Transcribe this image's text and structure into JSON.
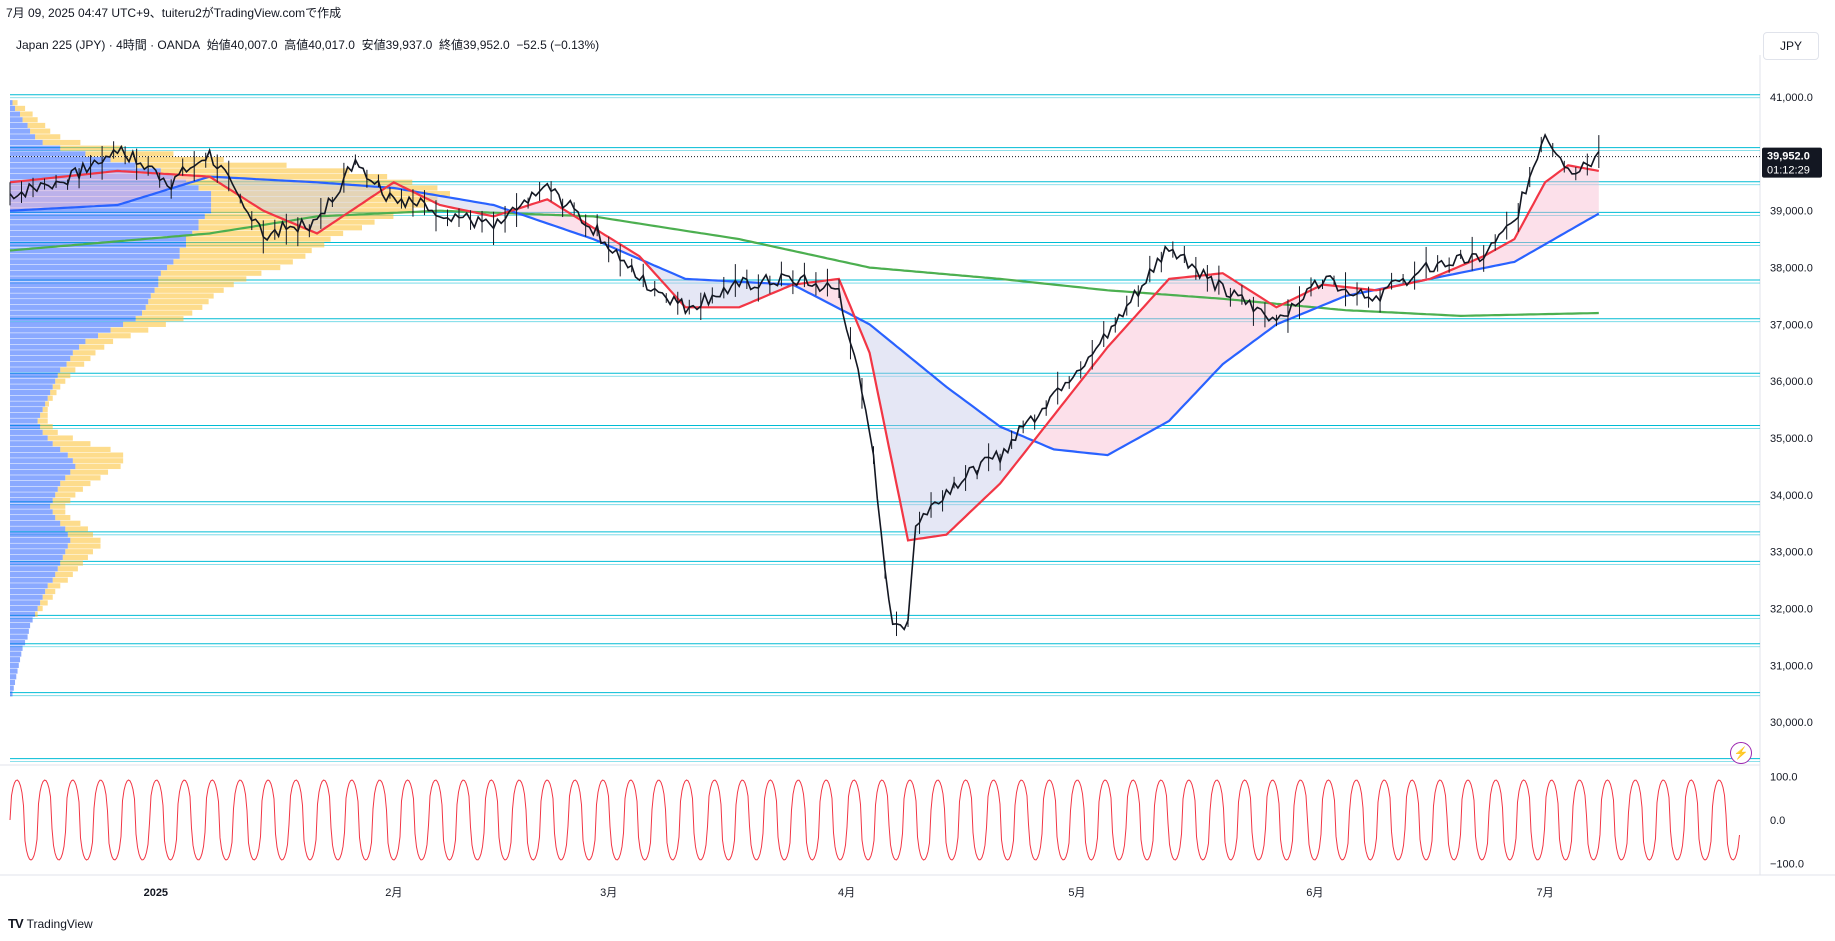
{
  "header": {
    "caption": "7月 09, 2025 04:47 UTC+9、tuiteru2がTradingView.comで作成"
  },
  "symbol": {
    "name": "Japan 225 (JPY)",
    "separator1": " · ",
    "interval": "4時間",
    "separator2": " · ",
    "broker": "OANDA",
    "open_label": "始値",
    "open": "40,007.0",
    "high_label": "高値",
    "high": "40,017.0",
    "low_label": "安値",
    "low": "39,937.0",
    "close_label": "終値",
    "close": "39,952.0",
    "change": "−52.5 (−0.13%)"
  },
  "currency": "JPY",
  "price_tag": {
    "price": "39,952.0",
    "countdown": "01:12:29"
  },
  "footer": {
    "brand": "TradingView",
    "logo_glyph": "TV"
  },
  "colors": {
    "candle": "#131722",
    "ma_fast": "#f23645",
    "ma_mid": "#2962ff",
    "ma_slow": "#4caf50",
    "hline": "#00bcd4",
    "vp_up": "#2962ff",
    "vp_down": "#fbc02d",
    "fill_bull": "#f8bbd0",
    "fill_bear": "#c5cae9",
    "osc": "#f23645"
  },
  "chart_data": [
    {
      "type": "line",
      "title": "",
      "y_ticks": [
        "41,000.0",
        "40,000.0",
        "39,000.0",
        "38,000.0",
        "37,000.0",
        "36,000.0",
        "35,000.0",
        "34,000.0",
        "33,000.0",
        "32,000.0",
        "31,000.0",
        "30,000.0"
      ],
      "ylim": [
        29300,
        41300
      ],
      "x_ticks": [
        "2025",
        "2月",
        "3月",
        "4月",
        "5月",
        "6月",
        "7月"
      ],
      "x_tick_dates": [
        "2025-01-01",
        "2025-02-01",
        "2025-03-01",
        "2025-04-01",
        "2025-05-01",
        "2025-06-01",
        "2025-07-01"
      ],
      "xlim": [
        "2024-12-13",
        "2025-07-29"
      ],
      "last_close": 39952,
      "horizontal_levels": [
        41040,
        40110,
        39510,
        38970,
        38440,
        37780,
        37100,
        36140,
        35220,
        33880,
        33350,
        32830,
        31880,
        31380,
        30520,
        29360
      ],
      "series": [
        {
          "kind": "price",
          "x": [
            "2024-12-13",
            "2024-12-20",
            "2024-12-27",
            "2025-01-03",
            "2025-01-08",
            "2025-01-15",
            "2025-01-22",
            "2025-01-27",
            "2025-01-31",
            "2025-02-07",
            "2025-02-14",
            "2025-02-21",
            "2025-02-27",
            "2025-03-05",
            "2025-03-11",
            "2025-03-18",
            "2025-03-25",
            "2025-03-31",
            "2025-04-04",
            "2025-04-07",
            "2025-04-09",
            "2025-04-10",
            "2025-04-14",
            "2025-04-21",
            "2025-04-28",
            "2025-05-05",
            "2025-05-13",
            "2025-05-20",
            "2025-05-27",
            "2025-06-02",
            "2025-06-09",
            "2025-06-16",
            "2025-06-23",
            "2025-06-27",
            "2025-07-01",
            "2025-07-04",
            "2025-07-08"
          ],
          "values": [
            39300,
            39500,
            40100,
            39500,
            40000,
            38600,
            38800,
            39900,
            39300,
            39000,
            38700,
            39400,
            38700,
            37800,
            37300,
            37700,
            37800,
            37600,
            35200,
            31600,
            31800,
            33500,
            34100,
            34700,
            35800,
            36800,
            38400,
            37600,
            37100,
            37800,
            37500,
            38000,
            38200,
            38800,
            40400,
            39700,
            39952
          ]
        },
        {
          "name": "",
          "kind": "ma_fast",
          "x": [
            "2024-12-13",
            "2024-12-27",
            "2025-01-08",
            "2025-01-15",
            "2025-01-22",
            "2025-02-01",
            "2025-02-07",
            "2025-02-14",
            "2025-02-21",
            "2025-02-27",
            "2025-03-05",
            "2025-03-11",
            "2025-03-18",
            "2025-03-25",
            "2025-03-31",
            "2025-04-04",
            "2025-04-09",
            "2025-04-14",
            "2025-04-21",
            "2025-04-28",
            "2025-05-05",
            "2025-05-13",
            "2025-05-20",
            "2025-05-27",
            "2025-06-02",
            "2025-06-09",
            "2025-06-16",
            "2025-06-23",
            "2025-06-27",
            "2025-07-01",
            "2025-07-04",
            "2025-07-08"
          ],
          "values": [
            39500,
            39700,
            39600,
            39000,
            38600,
            39500,
            39100,
            38900,
            39200,
            38700,
            38200,
            37300,
            37300,
            37700,
            37800,
            36500,
            33200,
            33300,
            34200,
            35400,
            36600,
            37800,
            37900,
            37300,
            37700,
            37600,
            37800,
            38200,
            38500,
            39500,
            39800,
            39700
          ]
        },
        {
          "name": "",
          "kind": "ma_mid",
          "x": [
            "2024-12-13",
            "2024-12-27",
            "2025-01-08",
            "2025-01-22",
            "2025-02-01",
            "2025-02-14",
            "2025-02-27",
            "2025-03-11",
            "2025-03-25",
            "2025-04-04",
            "2025-04-14",
            "2025-04-21",
            "2025-04-28",
            "2025-05-05",
            "2025-05-13",
            "2025-05-20",
            "2025-05-27",
            "2025-06-05",
            "2025-06-16",
            "2025-06-27",
            "2025-07-08"
          ],
          "values": [
            39000,
            39100,
            39600,
            39500,
            39400,
            39100,
            38500,
            37800,
            37700,
            37000,
            35900,
            35200,
            34800,
            34700,
            35300,
            36300,
            37000,
            37500,
            37800,
            38100,
            38950
          ]
        },
        {
          "name": "",
          "kind": "ma_slow",
          "x": [
            "2024-12-13",
            "2025-01-08",
            "2025-01-22",
            "2025-02-07",
            "2025-02-27",
            "2025-03-18",
            "2025-04-04",
            "2025-04-21",
            "2025-05-05",
            "2025-05-20",
            "2025-06-05",
            "2025-06-20",
            "2025-07-08"
          ],
          "values": [
            38300,
            38600,
            38900,
            39000,
            38900,
            38500,
            38000,
            37800,
            37600,
            37450,
            37250,
            37150,
            37200
          ]
        }
      ],
      "volume_profile": {
        "price_bins": [
          40900,
          40800,
          40700,
          40600,
          40500,
          40400,
          40300,
          40200,
          40100,
          40000,
          39900,
          39800,
          39700,
          39600,
          39500,
          39400,
          39300,
          39200,
          39100,
          39000,
          38900,
          38800,
          38700,
          38600,
          38500,
          38400,
          38300,
          38200,
          38100,
          38000,
          37900,
          37800,
          37700,
          37600,
          37500,
          37400,
          37300,
          37200,
          37100,
          37000,
          36900,
          36800,
          36700,
          36600,
          36500,
          36400,
          36300,
          36200,
          36100,
          36000,
          35900,
          35800,
          35700,
          35600,
          35500,
          35400,
          35300,
          35200,
          35100,
          35000,
          34900,
          34800,
          34700,
          34600,
          34500,
          34400,
          34300,
          34200,
          34100,
          34000,
          33900,
          33800,
          33700,
          33600,
          33500,
          33400,
          33300,
          33200,
          33100,
          33000,
          32900,
          32800,
          32700,
          32600,
          32500,
          32400,
          32300,
          32200,
          32100,
          32000,
          31900,
          31800,
          31700,
          31600,
          31500,
          31400,
          31300,
          31200,
          31100,
          31000,
          30900,
          30800,
          30700,
          30600,
          30500
        ],
        "up": [
          2,
          4,
          8,
          10,
          14,
          16,
          20,
          26,
          40,
          60,
          80,
          100,
          120,
          130,
          140,
          150,
          160,
          160,
          160,
          160,
          155,
          150,
          150,
          145,
          140,
          140,
          135,
          135,
          130,
          125,
          120,
          118,
          118,
          115,
          112,
          110,
          108,
          105,
          100,
          90,
          80,
          70,
          60,
          55,
          50,
          48,
          45,
          40,
          38,
          36,
          34,
          32,
          30,
          28,
          26,
          24,
          22,
          24,
          26,
          30,
          34,
          40,
          46,
          50,
          52,
          48,
          44,
          40,
          38,
          36,
          34,
          32,
          34,
          36,
          40,
          44,
          46,
          48,
          46,
          44,
          42,
          40,
          38,
          36,
          34,
          30,
          28,
          26,
          24,
          22,
          20,
          18,
          16,
          15,
          14,
          12,
          10,
          9,
          8,
          7,
          6,
          5,
          4,
          3,
          2
        ],
        "down": [
          4,
          8,
          10,
          12,
          14,
          16,
          20,
          30,
          50,
          70,
          90,
          120,
          150,
          170,
          180,
          190,
          190,
          180,
          170,
          160,
          150,
          140,
          130,
          120,
          115,
          110,
          105,
          100,
          95,
          90,
          80,
          70,
          60,
          55,
          50,
          48,
          45,
          40,
          38,
          34,
          30,
          26,
          22,
          20,
          18,
          16,
          14,
          12,
          10,
          8,
          6,
          5,
          4,
          3,
          4,
          6,
          8,
          10,
          12,
          20,
          30,
          40,
          44,
          40,
          36,
          30,
          28,
          24,
          20,
          16,
          14,
          12,
          10,
          12,
          16,
          18,
          20,
          24,
          26,
          22,
          20,
          18,
          16,
          14,
          12,
          10,
          8,
          8,
          6,
          4,
          2,
          0,
          0,
          0,
          0,
          0,
          0,
          0,
          0,
          0,
          0,
          0,
          0,
          0,
          0
        ]
      }
    },
    {
      "type": "line",
      "name": "",
      "y_ticks": [
        "100.0",
        "0.0",
        "−100.0"
      ],
      "ylim": [
        -115,
        115
      ],
      "cycles": 62,
      "amplitude": 92
    }
  ]
}
